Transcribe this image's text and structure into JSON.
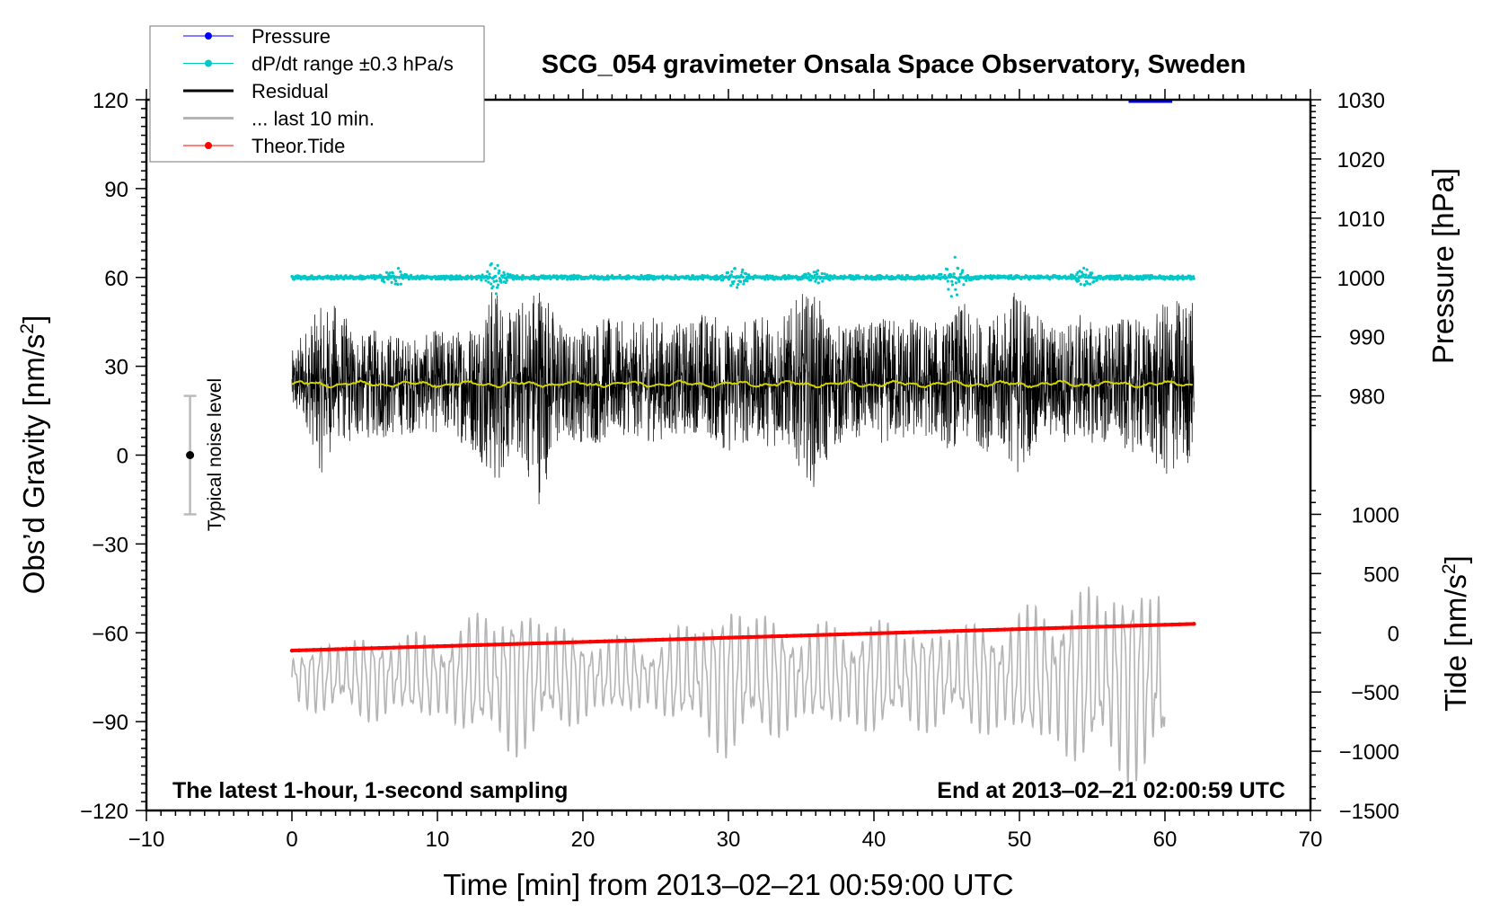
{
  "chart_data": {
    "type": "line",
    "title": "SCG_054 gravimeter Onsala Space Observatory, Sweden",
    "xlabel": "Time [min] from 2013‒02‒21 00:59:00 UTC",
    "ylabel_left": "Obs’d Gravity [nm/s",
    "ylabel_left_sup": "2",
    "ylabel_left_end": "]",
    "ylabel_right_pressure": "Pressure [hPa]",
    "ylabel_right_tide": "Tide [nm/s",
    "ylabel_right_tide_sup": "2",
    "ylabel_right_tide_end": "]",
    "xlim": [
      -10,
      70
    ],
    "ylim_left": [
      -120,
      120
    ],
    "pressure_range": [
      970,
      1030
    ],
    "tide_range": [
      -1500,
      1000
    ],
    "x_ticks": [
      "−10",
      "0",
      "10",
      "20",
      "30",
      "40",
      "50",
      "60",
      "70"
    ],
    "x_tick_values": [
      -10,
      0,
      10,
      20,
      30,
      40,
      50,
      60,
      70
    ],
    "y_left_ticks": [
      "120",
      "90",
      "60",
      "30",
      "0",
      "−30",
      "−60",
      "−90",
      "−120"
    ],
    "y_left_tick_values": [
      120,
      90,
      60,
      30,
      0,
      -30,
      -60,
      -90,
      -120
    ],
    "pressure_ticks": [
      "1030",
      "1020",
      "1010",
      "1000",
      "990",
      "980"
    ],
    "pressure_tick_values": [
      1030,
      1020,
      1010,
      1000,
      990,
      980
    ],
    "tide_ticks": [
      "1000",
      "500",
      "0",
      "−500",
      "−1000",
      "−1500"
    ],
    "tide_tick_values": [
      1000,
      500,
      0,
      -500,
      -1000,
      -1500
    ],
    "legend": {
      "placement": "top-left",
      "entries": [
        {
          "label": "Pressure",
          "color": "#0000ff",
          "style": "line-dot"
        },
        {
          "label": "dP/dt range ±0.3 hPa/s",
          "color": "#00c8c8",
          "style": "line-dot"
        },
        {
          "label": "Residual",
          "color": "#000000",
          "style": "line"
        },
        {
          "label": "... last 10 min.",
          "color": "#b4b4b4",
          "style": "line"
        },
        {
          "label": "Theor.Tide",
          "color": "#ff0000",
          "style": "line-dot"
        }
      ]
    },
    "annotations": {
      "bottom_left": "The latest 1‑hour, 1‑second sampling",
      "bottom_right": "End at 2013‒02‒21 02:00:59 UTC",
      "noise_label": "Typical noise level"
    },
    "noise_bar": {
      "x": -7,
      "center": 0,
      "low": -20,
      "high": 20
    },
    "series": {
      "pressure": {
        "unit": "hPa",
        "x": [
          57.5,
          58.2,
          59.0,
          59.5,
          60.0,
          60.5
        ],
        "values": [
          1030,
          1030,
          1030,
          1030,
          1030,
          1030
        ]
      },
      "dpdt": {
        "unit": "hPa",
        "baseline": 1000,
        "x_range": [
          0,
          62
        ],
        "noise": 0.35,
        "bursts": [
          {
            "t": 7,
            "a": 1.6
          },
          {
            "t": 14,
            "a": 2.5
          },
          {
            "t": 30.5,
            "a": 2.2
          },
          {
            "t": 36,
            "a": 0.9
          },
          {
            "t": 45.5,
            "a": 3.2
          },
          {
            "t": 54.5,
            "a": 1.3
          }
        ]
      },
      "residual": {
        "unit": "nm/s2",
        "mean": 24,
        "x_step_min": 1,
        "upper": [
          35,
          45,
          50,
          52,
          45,
          40,
          44,
          42,
          40,
          40,
          43,
          42,
          45,
          50,
          60,
          48,
          55,
          63,
          50,
          42,
          45,
          48,
          46,
          45,
          45,
          48,
          44,
          45,
          50,
          48,
          45,
          47,
          46,
          50,
          48,
          55,
          55,
          45,
          44,
          45,
          45,
          47,
          48,
          47,
          45,
          46,
          52,
          48,
          45,
          50,
          61,
          48,
          45,
          45,
          48,
          45,
          46,
          46,
          46,
          45,
          52,
          54,
          54
        ],
        "lower": [
          12,
          10,
          -7,
          5,
          3,
          6,
          5,
          6,
          7,
          8,
          7,
          6,
          3,
          -2,
          -13,
          0,
          -5,
          -17,
          0,
          5,
          4,
          3,
          5,
          7,
          5,
          4,
          7,
          6,
          8,
          4,
          0,
          3,
          5,
          2,
          3,
          -5,
          -12,
          0,
          5,
          6,
          5,
          3,
          4,
          5,
          6,
          2,
          3,
          4,
          0,
          0,
          -8,
          3,
          5,
          4,
          5,
          4,
          2,
          3,
          0,
          -2,
          -10,
          -5,
          -3
        ]
      },
      "residual_smoothed": {
        "unit": "nm/s2",
        "mean": 24,
        "color": "#d2d200"
      },
      "last_10_min": {
        "unit": "nm/s2",
        "center": -75,
        "x_range": [
          0,
          60
        ],
        "period_min": 0.6,
        "amplitude_per_5min": [
          8,
          12,
          12,
          22,
          12,
          10,
          22,
          14,
          16,
          14,
          18,
          26,
          30
        ]
      },
      "theor_tide": {
        "unit": "nm/s2",
        "x": [
          0,
          62
        ],
        "values": [
          -150,
          75
        ]
      }
    }
  }
}
